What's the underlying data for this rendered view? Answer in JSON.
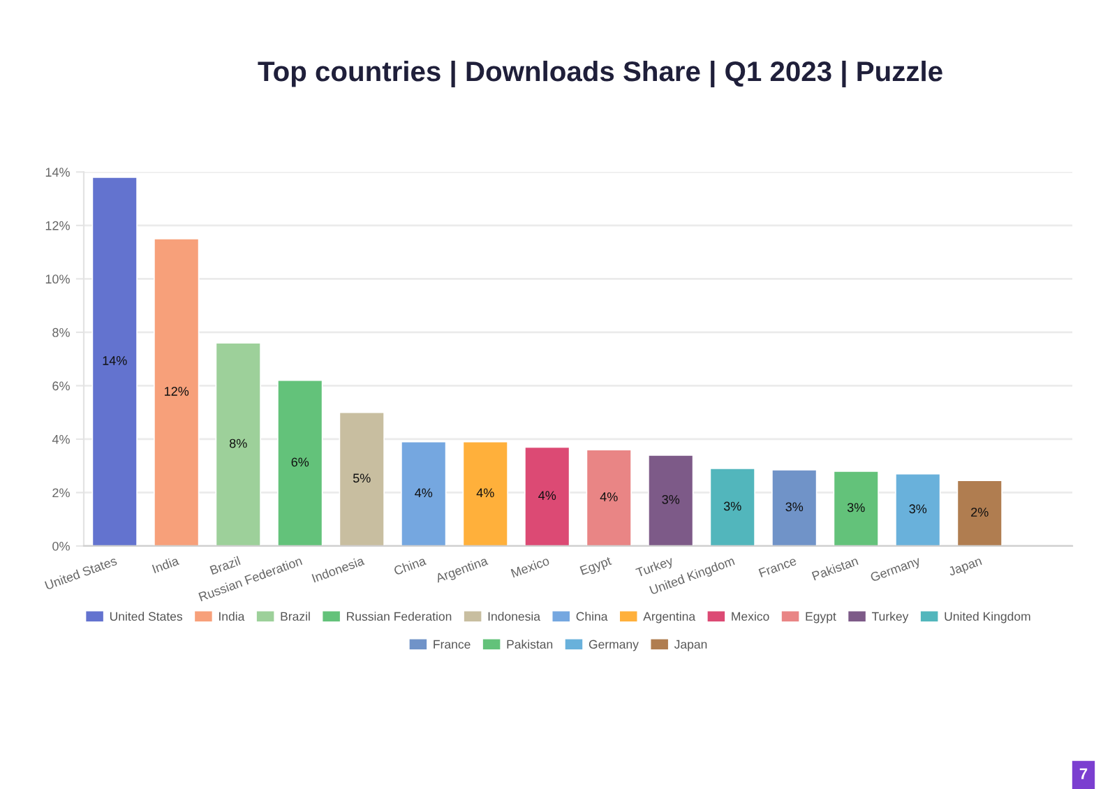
{
  "chart_data": {
    "type": "bar",
    "title": "Top countries | Downloads Share | Q1 2023 | Puzzle",
    "categories": [
      "United States",
      "India",
      "Brazil",
      "Russian Federation",
      "Indonesia",
      "China",
      "Argentina",
      "Mexico",
      "Egypt",
      "Turkey",
      "United Kingdom",
      "France",
      "Pakistan",
      "Germany",
      "Japan"
    ],
    "stacked": true,
    "series": [
      {
        "name": "United States",
        "color": "#6373cf",
        "values": [
          13.8,
          null,
          null,
          null,
          null,
          null,
          null,
          null,
          null,
          null,
          null,
          null,
          null,
          null,
          null
        ],
        "value_labels": [
          "14%",
          null,
          null,
          null,
          null,
          null,
          null,
          null,
          null,
          null,
          null,
          null,
          null,
          null,
          null
        ]
      },
      {
        "name": "India",
        "color": "#f7a07a",
        "values": [
          null,
          11.5,
          null,
          null,
          null,
          null,
          null,
          null,
          null,
          null,
          null,
          null,
          null,
          null,
          null
        ],
        "value_labels": [
          null,
          "12%",
          null,
          null,
          null,
          null,
          null,
          null,
          null,
          null,
          null,
          null,
          null,
          null,
          null
        ]
      },
      {
        "name": "Brazil",
        "color": "#9dd09a",
        "values": [
          null,
          null,
          7.6,
          null,
          null,
          null,
          null,
          null,
          null,
          null,
          null,
          null,
          null,
          null,
          null
        ],
        "value_labels": [
          null,
          null,
          "8%",
          null,
          null,
          null,
          null,
          null,
          null,
          null,
          null,
          null,
          null,
          null,
          null
        ]
      },
      {
        "name": "Russian Federation",
        "color": "#63c27a",
        "values": [
          null,
          null,
          null,
          6.2,
          null,
          null,
          null,
          null,
          null,
          null,
          null,
          null,
          null,
          null,
          null
        ],
        "value_labels": [
          null,
          null,
          null,
          "6%",
          null,
          null,
          null,
          null,
          null,
          null,
          null,
          null,
          null,
          null,
          null
        ]
      },
      {
        "name": "Indonesia",
        "color": "#c8bea0",
        "values": [
          null,
          null,
          null,
          null,
          5.0,
          null,
          null,
          null,
          null,
          null,
          null,
          null,
          null,
          null,
          null
        ],
        "value_labels": [
          null,
          null,
          null,
          null,
          "5%",
          null,
          null,
          null,
          null,
          null,
          null,
          null,
          null,
          null,
          null
        ]
      },
      {
        "name": "China",
        "color": "#75a7e0",
        "values": [
          null,
          null,
          null,
          null,
          null,
          3.9,
          null,
          null,
          null,
          null,
          null,
          null,
          null,
          null,
          null
        ],
        "value_labels": [
          null,
          null,
          null,
          null,
          null,
          "4%",
          null,
          null,
          null,
          null,
          null,
          null,
          null,
          null,
          null
        ]
      },
      {
        "name": "Argentina",
        "color": "#ffb03b",
        "values": [
          null,
          null,
          null,
          null,
          null,
          null,
          3.9,
          null,
          null,
          null,
          null,
          null,
          null,
          null,
          null
        ],
        "value_labels": [
          null,
          null,
          null,
          null,
          null,
          null,
          "4%",
          null,
          null,
          null,
          null,
          null,
          null,
          null,
          null
        ]
      },
      {
        "name": "Mexico",
        "color": "#dc4a74",
        "values": [
          null,
          null,
          null,
          null,
          null,
          null,
          null,
          3.7,
          null,
          null,
          null,
          null,
          null,
          null,
          null
        ],
        "value_labels": [
          null,
          null,
          null,
          null,
          null,
          null,
          null,
          "4%",
          null,
          null,
          null,
          null,
          null,
          null,
          null
        ]
      },
      {
        "name": "Egypt",
        "color": "#e98585",
        "values": [
          null,
          null,
          null,
          null,
          null,
          null,
          null,
          null,
          3.6,
          null,
          null,
          null,
          null,
          null,
          null
        ],
        "value_labels": [
          null,
          null,
          null,
          null,
          null,
          null,
          null,
          null,
          "4%",
          null,
          null,
          null,
          null,
          null,
          null
        ]
      },
      {
        "name": "Turkey",
        "color": "#7d5a88",
        "values": [
          null,
          null,
          null,
          null,
          null,
          null,
          null,
          null,
          null,
          3.4,
          null,
          null,
          null,
          null,
          null
        ],
        "value_labels": [
          null,
          null,
          null,
          null,
          null,
          null,
          null,
          null,
          null,
          "3%",
          null,
          null,
          null,
          null,
          null
        ]
      },
      {
        "name": "United Kingdom",
        "color": "#52b6bc",
        "values": [
          null,
          null,
          null,
          null,
          null,
          null,
          null,
          null,
          null,
          null,
          2.9,
          null,
          null,
          null,
          null
        ],
        "value_labels": [
          null,
          null,
          null,
          null,
          null,
          null,
          null,
          null,
          null,
          null,
          "3%",
          null,
          null,
          null,
          null
        ]
      },
      {
        "name": "France",
        "color": "#7093c8",
        "values": [
          null,
          null,
          null,
          null,
          null,
          null,
          null,
          null,
          null,
          null,
          null,
          2.85,
          null,
          null,
          null
        ],
        "value_labels": [
          null,
          null,
          null,
          null,
          null,
          null,
          null,
          null,
          null,
          null,
          null,
          "3%",
          null,
          null,
          null
        ]
      },
      {
        "name": "Pakistan",
        "color": "#63c27a",
        "values": [
          null,
          null,
          null,
          null,
          null,
          null,
          null,
          null,
          null,
          null,
          null,
          null,
          2.8,
          null,
          null
        ],
        "value_labels": [
          null,
          null,
          null,
          null,
          null,
          null,
          null,
          null,
          null,
          null,
          null,
          null,
          "3%",
          null,
          null
        ]
      },
      {
        "name": "Germany",
        "color": "#69b1db",
        "values": [
          null,
          null,
          null,
          null,
          null,
          null,
          null,
          null,
          null,
          null,
          null,
          null,
          null,
          2.7,
          null
        ],
        "value_labels": [
          null,
          null,
          null,
          null,
          null,
          null,
          null,
          null,
          null,
          null,
          null,
          null,
          null,
          "3%",
          null
        ]
      },
      {
        "name": "Japan",
        "color": "#b07d50",
        "values": [
          null,
          null,
          null,
          null,
          null,
          null,
          null,
          null,
          null,
          null,
          null,
          null,
          null,
          null,
          2.45
        ],
        "value_labels": [
          null,
          null,
          null,
          null,
          null,
          null,
          null,
          null,
          null,
          null,
          null,
          null,
          null,
          null,
          "2%"
        ]
      }
    ],
    "ylim": [
      0,
      14
    ],
    "yticks": [
      {
        "value": 0,
        "label": "0%"
      },
      {
        "value": 2,
        "label": "2%"
      },
      {
        "value": 4,
        "label": "4%"
      },
      {
        "value": 6,
        "label": "6%"
      },
      {
        "value": 8,
        "label": "8%"
      },
      {
        "value": 10,
        "label": "10%"
      },
      {
        "value": 12,
        "label": "12%"
      },
      {
        "value": 14,
        "label": "14%"
      }
    ],
    "grid": "y",
    "legend": "bottom",
    "annotations": [
      "7"
    ]
  }
}
